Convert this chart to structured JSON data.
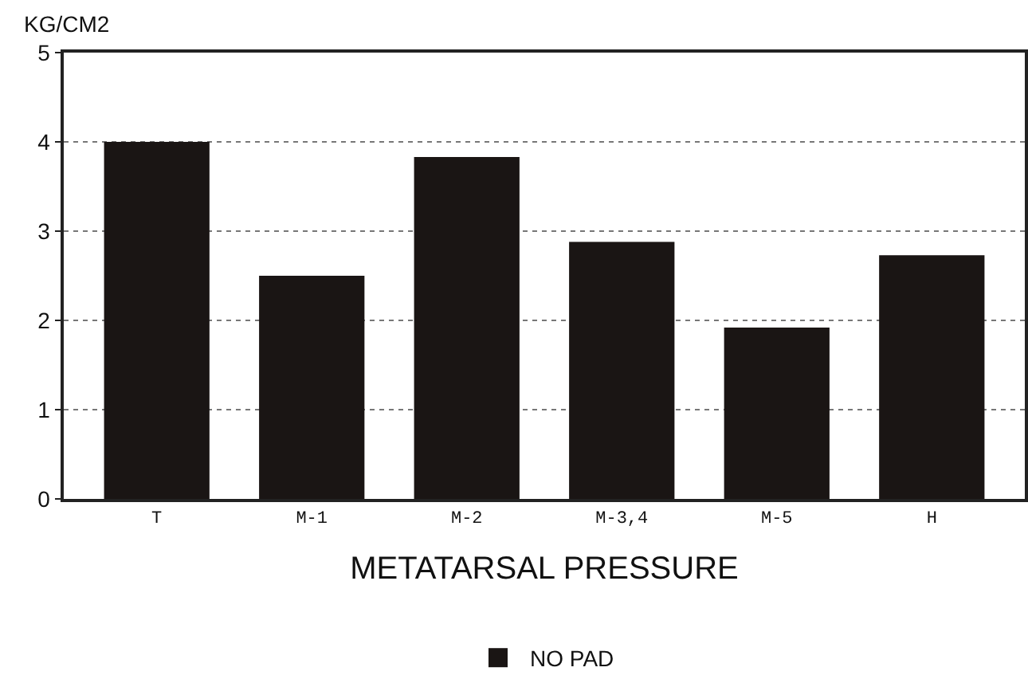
{
  "chart_data": {
    "type": "bar",
    "xlabel": "METATARSAL PRESSURE",
    "ylabel": "KG/CM2",
    "categories": [
      "T",
      "M-1",
      "M-2",
      "M-3,4",
      "M-5",
      "H"
    ],
    "series": [
      {
        "name": "NO PAD",
        "color": "#1a1514",
        "values": [
          4.0,
          2.5,
          3.83,
          2.88,
          1.92,
          2.73
        ]
      }
    ],
    "ylim": [
      0,
      5
    ],
    "yticks": [
      0,
      1,
      2,
      3,
      4,
      5
    ],
    "grid": "y",
    "legend": "bottom"
  }
}
